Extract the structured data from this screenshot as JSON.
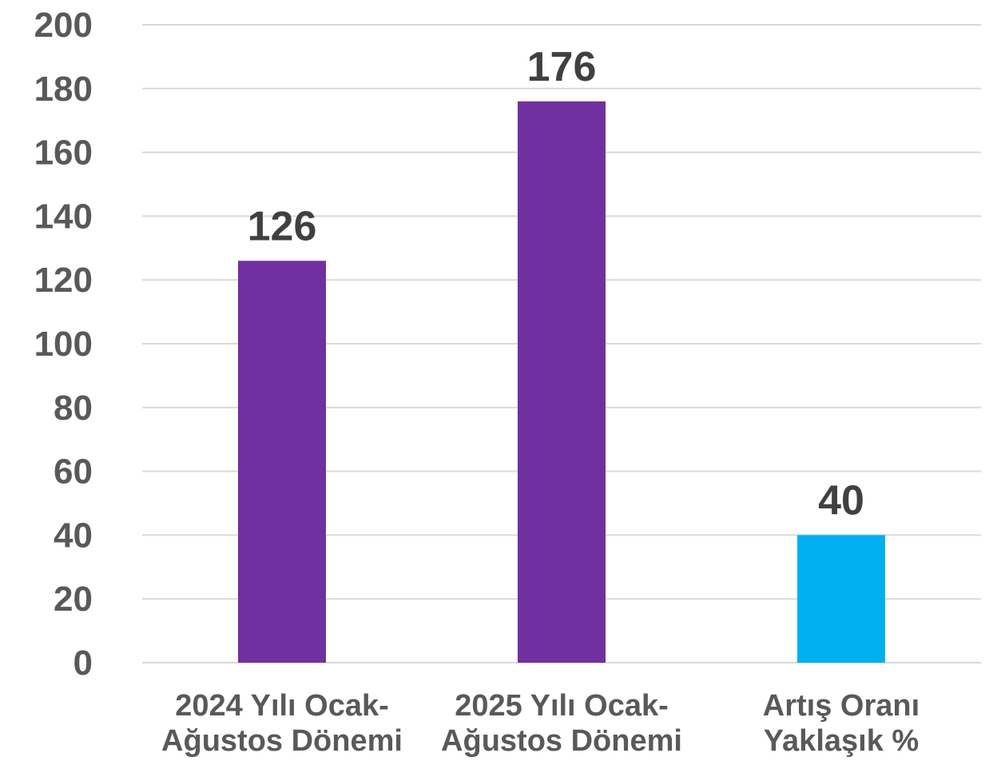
{
  "chart_data": {
    "type": "bar",
    "title": "",
    "xlabel": "",
    "ylabel": "",
    "categories": [
      [
        "2024 Yılı Ocak-",
        "Ağustos Dönemi"
      ],
      [
        "2025 Yılı Ocak-",
        "Ağustos Dönemi"
      ],
      [
        "Artış Oranı",
        "Yaklaşık %"
      ]
    ],
    "values": [
      126,
      176,
      40
    ],
    "data_labels": [
      "126",
      "176",
      "40"
    ],
    "bar_colors": [
      "#7030a0",
      "#7030a0",
      "#00b0f0"
    ],
    "ylim": [
      0,
      200
    ],
    "yticks": [
      0,
      20,
      40,
      60,
      80,
      100,
      120,
      140,
      160,
      180,
      200
    ],
    "grid": true,
    "legend": "none"
  }
}
